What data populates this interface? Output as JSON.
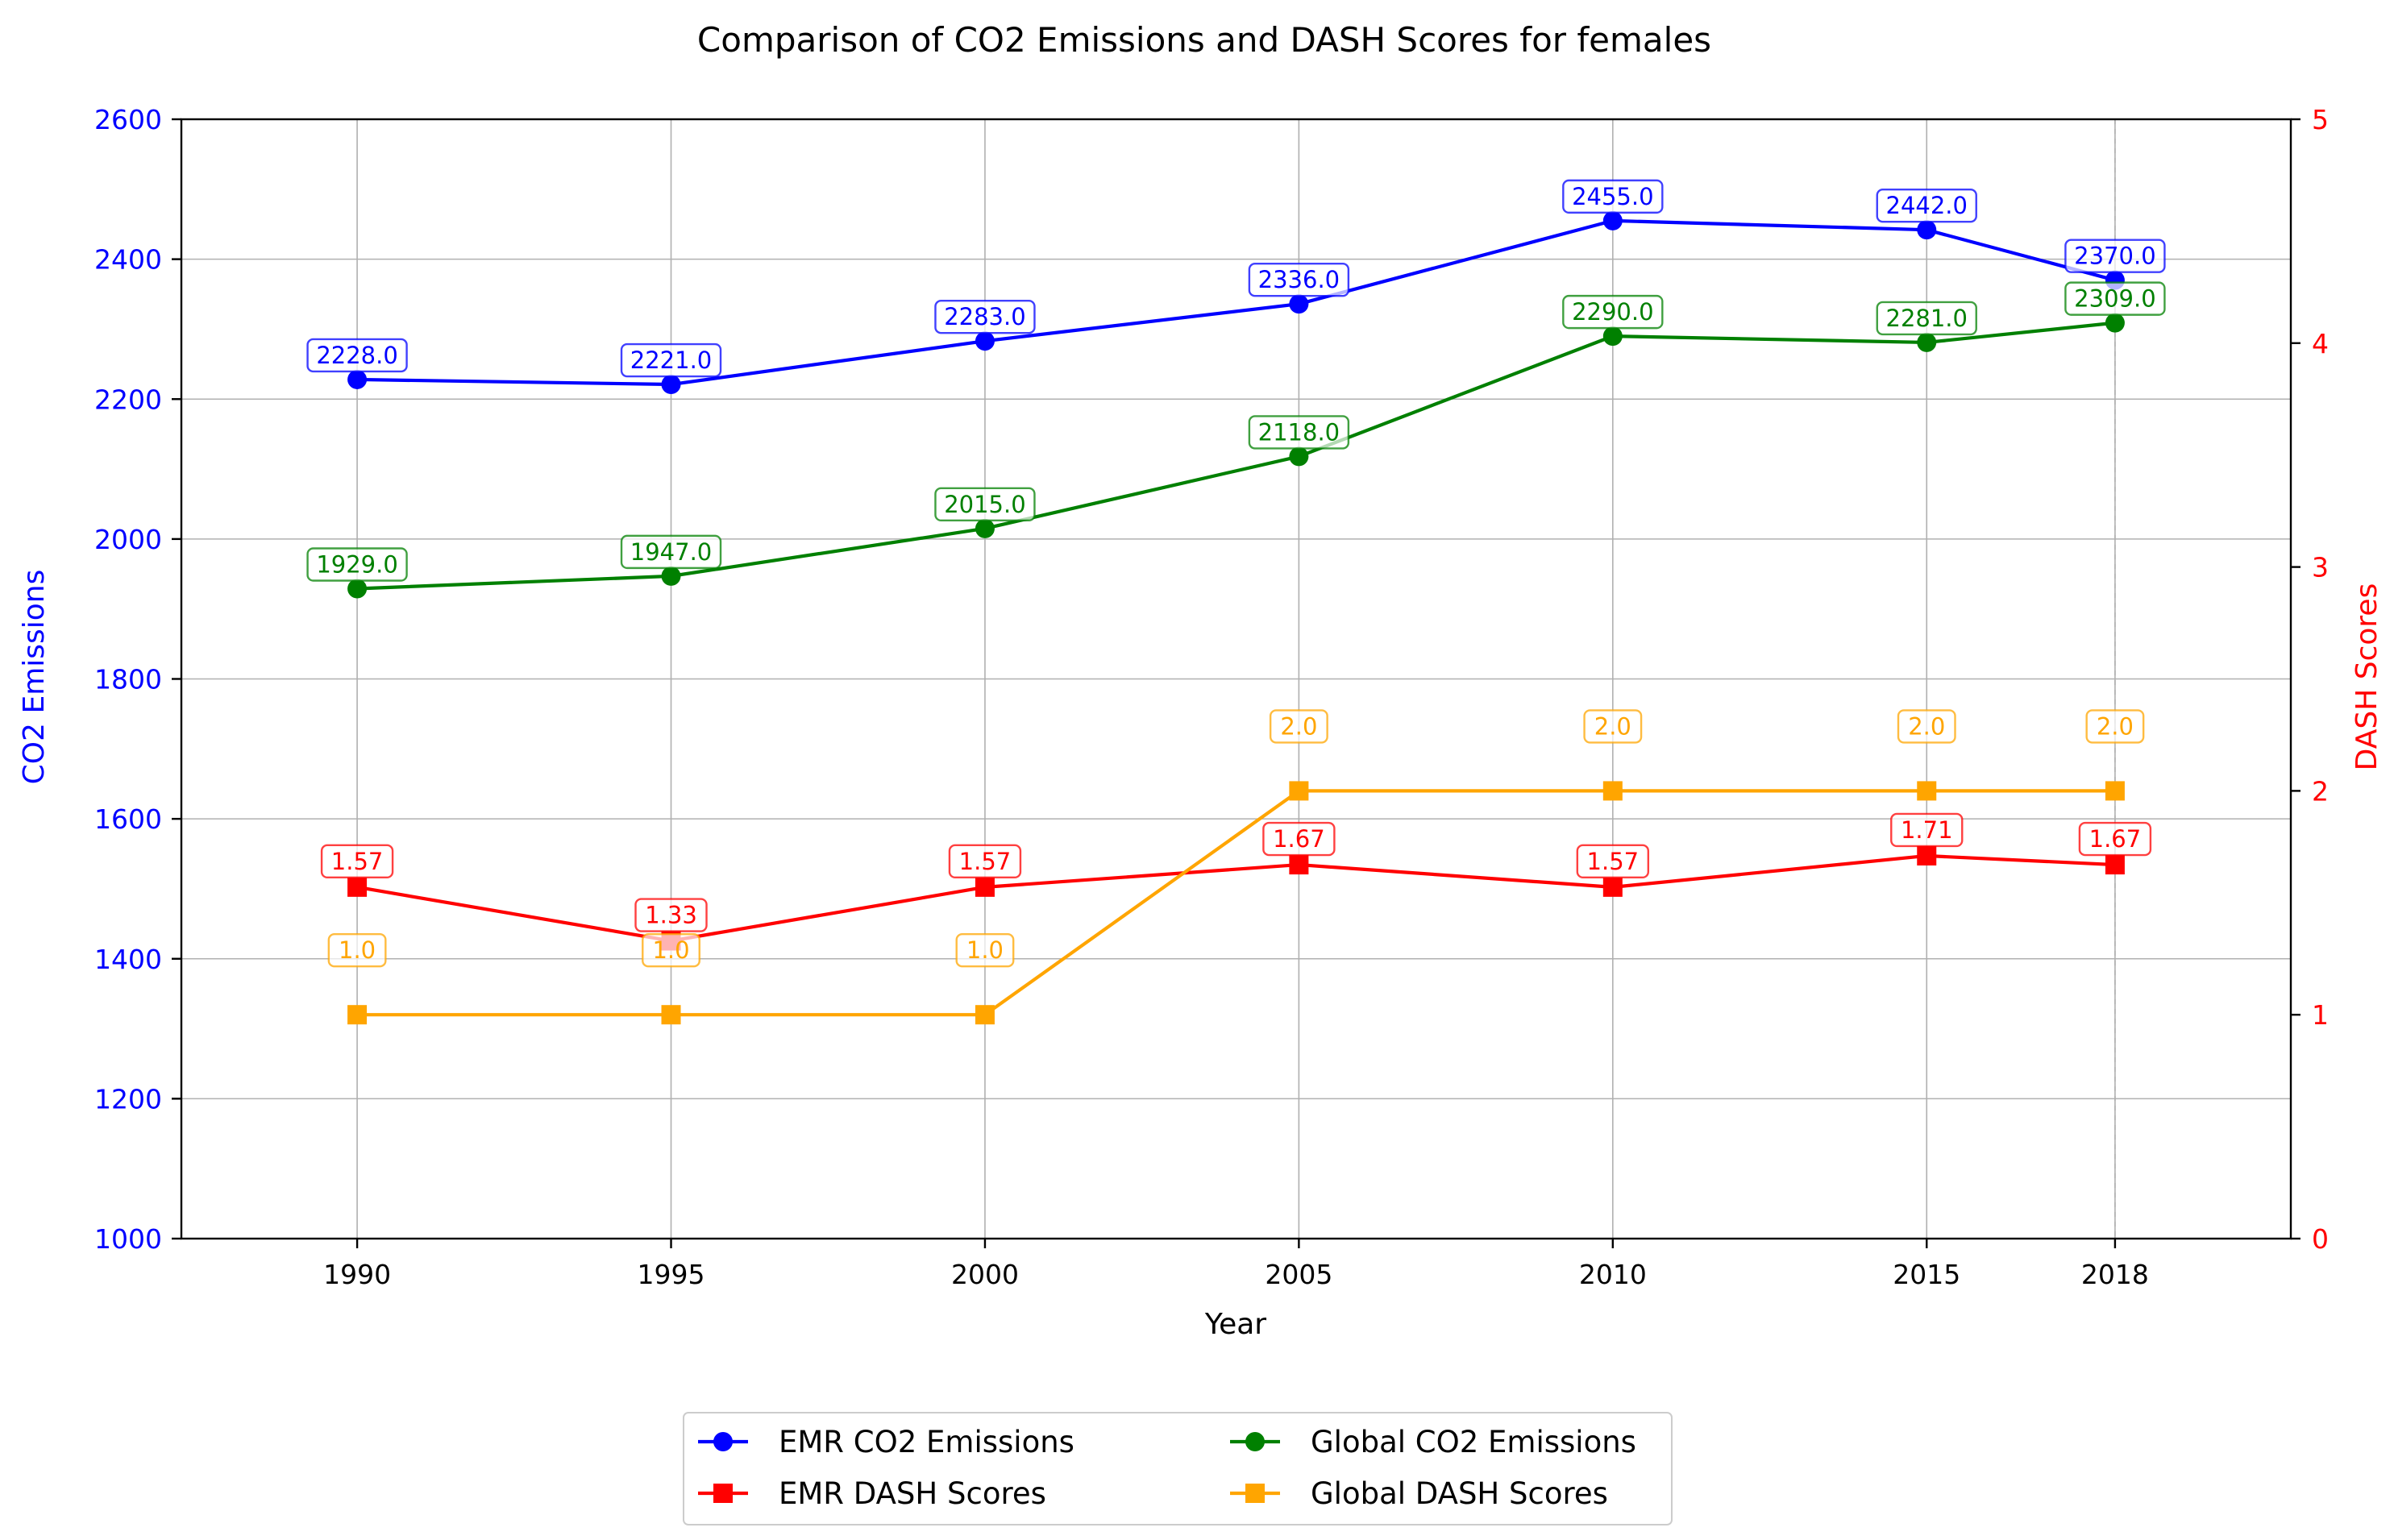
{
  "chart_data": {
    "type": "line",
    "title": "Comparison of CO2 Emissions and DASH Scores for females",
    "xlabel": "Year",
    "ylabel_left": "CO2 Emissions",
    "ylabel_right": "DASH Scores",
    "x": [
      1990,
      1995,
      2000,
      2005,
      2010,
      2015,
      2018
    ],
    "x_tick_labels": [
      "1990",
      "1995",
      "2000",
      "2005",
      "2010",
      "2015",
      "2018"
    ],
    "ylim_left": [
      1000,
      2600
    ],
    "yticks_left": [
      1000,
      1200,
      1400,
      1600,
      1800,
      2000,
      2200,
      2400,
      2600
    ],
    "ylim_right": [
      0,
      5
    ],
    "yticks_right": [
      0,
      1,
      2,
      3,
      4,
      5
    ],
    "grid": true,
    "legend_position": "bottom-center, below plot, 2 columns",
    "series": [
      {
        "name": "EMR CO2 Emissions",
        "axis": "left",
        "marker": "circle",
        "color": "#0000ff",
        "values": [
          2228.0,
          2221.0,
          2283.0,
          2336.0,
          2455.0,
          2442.0,
          2370.0
        ],
        "labels": [
          "2228.0",
          "2221.0",
          "2283.0",
          "2336.0",
          "2455.0",
          "2442.0",
          "2370.0"
        ]
      },
      {
        "name": "Global CO2 Emissions",
        "axis": "left",
        "marker": "circle",
        "color": "#008000",
        "values": [
          1929.0,
          1947.0,
          2015.0,
          2118.0,
          2290.0,
          2281.0,
          2309.0
        ],
        "labels": [
          "1929.0",
          "1947.0",
          "2015.0",
          "2118.0",
          "2290.0",
          "2281.0",
          "2309.0"
        ]
      },
      {
        "name": "EMR DASH Scores",
        "axis": "right",
        "marker": "square",
        "color": "#ff0000",
        "values": [
          1.57,
          1.33,
          1.57,
          1.67,
          1.57,
          1.71,
          1.67
        ],
        "labels": [
          "1.57",
          "1.33",
          "1.57",
          "1.67",
          "1.57",
          "1.71",
          "1.67"
        ]
      },
      {
        "name": "Global DASH Scores",
        "axis": "right",
        "marker": "square",
        "color": "#ffa500",
        "values": [
          1.0,
          1.0,
          1.0,
          2.0,
          2.0,
          2.0,
          2.0
        ],
        "labels": [
          "1.0",
          "1.0",
          "1.0",
          "2.0",
          "2.0",
          "2.0",
          "2.0"
        ]
      }
    ],
    "legend_order": [
      0,
      2,
      1,
      3
    ],
    "axis_colors": {
      "left": "#0000ff",
      "right": "#ff0000"
    }
  }
}
